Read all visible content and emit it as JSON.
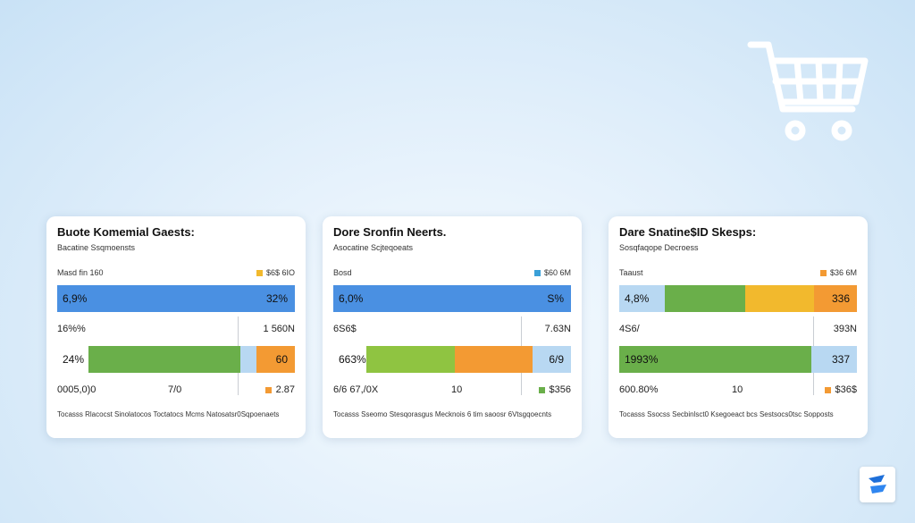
{
  "icons": {
    "cart": "shopping-cart-icon",
    "logo": "brand-logo-icon"
  },
  "colors": {
    "blue": "#4a90e2",
    "light_blue": "#b8d8f2",
    "green": "#6aaf4a",
    "lime": "#8fc441",
    "yellow": "#f2b92d",
    "orange": "#f39a33"
  },
  "chart_data": [
    {
      "type": "bar",
      "title": "Buote Komemial Gaests:",
      "subtitle": "Bacatine Ssqmoensts",
      "meta_left": "Masd fin 160",
      "meta_right": "$6$ 6IO",
      "legend_color": "#f2b92d",
      "top_bar": {
        "left_label": "6,9%",
        "right_label": "32%",
        "segments": [
          {
            "value": 100,
            "color": "#4a90e2"
          }
        ]
      },
      "mid_left": "16%%",
      "mid_right": "1 560N",
      "mid_swatch_color": "#b8d8f2",
      "bottom_bar": {
        "left_label": "24%",
        "right_label": "60",
        "segments": [
          {
            "value": 13,
            "color": "#ffffff"
          },
          {
            "value": 64,
            "color": "#6aaf4a"
          },
          {
            "value": 7,
            "color": "#b8d8f2"
          },
          {
            "value": 16,
            "color": "#f39a33"
          }
        ]
      },
      "foot_left": "0005,0)0",
      "foot_mid": "7/0",
      "foot_right": "2.87",
      "foot_swatch_color": "#f39a33",
      "note": "Tocasss Rlacocst Sinolatocos Toctatocs Mcms Natosatsr0Sqpoenaets"
    },
    {
      "type": "bar",
      "title": "Dore Sronfin Neerts.",
      "subtitle": "Asocatine Scjteqoeats",
      "meta_left": "Bosd",
      "meta_right": "$60 6M",
      "legend_color": "#3aa0d8",
      "top_bar": {
        "left_label": "6,0%",
        "right_label": "S%",
        "segments": [
          {
            "value": 100,
            "color": "#4a90e2"
          }
        ]
      },
      "mid_left": "6S6$",
      "mid_right": "7.63N",
      "mid_swatch_color": "#ffffff",
      "bottom_bar": {
        "left_label": "663%",
        "right_label": "6/9",
        "segments": [
          {
            "value": 14,
            "color": "#ffffff"
          },
          {
            "value": 37,
            "color": "#8fc441"
          },
          {
            "value": 33,
            "color": "#f39a33"
          },
          {
            "value": 16,
            "color": "#b8d8f2"
          }
        ]
      },
      "foot_left": "6/6 67,/0X",
      "foot_mid": "10",
      "foot_right": "$356",
      "foot_swatch_color": "#6aaf4a",
      "note": "Tocasss Sseomo Stesqorasgus Mecknois 6 tim saoosr 6Vtsgqoecnts"
    },
    {
      "type": "bar",
      "title": "Dare Snatine$ID Skesps:",
      "subtitle": "Sosqfaqope Decroess",
      "meta_left": "Taaust",
      "meta_right": "$36 6M",
      "legend_color": "#f39a33",
      "top_bar": {
        "left_label": "4,8%",
        "right_label": "336",
        "segments": [
          {
            "value": 19,
            "color": "#b8d8f2"
          },
          {
            "value": 34,
            "color": "#6aaf4a"
          },
          {
            "value": 29,
            "color": "#f2b92d"
          },
          {
            "value": 18,
            "color": "#f39a33"
          }
        ]
      },
      "mid_left": "4S6/",
      "mid_right": "393N",
      "mid_swatch_color": "#ffffff",
      "bottom_bar": {
        "left_label": "1993%",
        "right_label": "337",
        "segments": [
          {
            "value": 81,
            "color": "#6aaf4a"
          },
          {
            "value": 19,
            "color": "#b8d8f2"
          }
        ]
      },
      "foot_left": "600.80%",
      "foot_mid": "10",
      "foot_right": "$36$",
      "foot_swatch_color": "#f39a33",
      "note": "Tocasss Ssocss Secbinlsct0 Ksegoeact bcs Sestsocs0tsc Sopposts"
    }
  ]
}
